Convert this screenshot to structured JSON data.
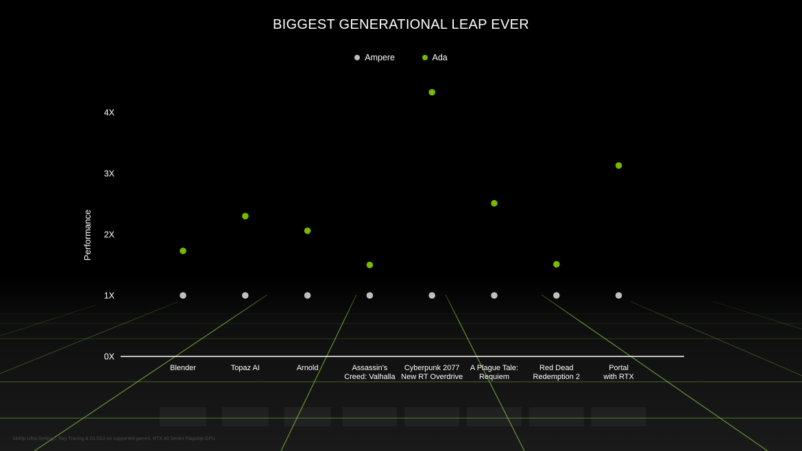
{
  "chart_data": {
    "type": "scatter",
    "title": "BIGGEST GENERATIONAL LEAP EVER",
    "ylabel": "Performance",
    "xlabel": "",
    "ylim": [
      0,
      4.5
    ],
    "y_ticks": [
      {
        "value": 0,
        "label": "0X"
      },
      {
        "value": 1,
        "label": "1X"
      },
      {
        "value": 2,
        "label": "2X"
      },
      {
        "value": 3,
        "label": "3X"
      },
      {
        "value": 4,
        "label": "4X"
      }
    ],
    "categories": [
      [
        "Blender"
      ],
      [
        "Topaz AI"
      ],
      [
        "Arnold"
      ],
      [
        "Assassin's",
        "Creed: Valhalla"
      ],
      [
        "Cyberpunk 2077",
        "New RT Overdrive"
      ],
      [
        "A Plague Tale:",
        "Requiem"
      ],
      [
        "Red Dead",
        "Redemption 2"
      ],
      [
        "Portal",
        "with RTX"
      ]
    ],
    "series": [
      {
        "name": "Ampere",
        "color": "#bfbfbf",
        "values": [
          1,
          1,
          1,
          1,
          1,
          1,
          1,
          1
        ]
      },
      {
        "name": "Ada",
        "color": "#76b900",
        "values": [
          1.73,
          2.3,
          2.06,
          1.5,
          4.33,
          2.51,
          1.51,
          3.13
        ]
      }
    ],
    "legend_position": "top-center",
    "grid": false
  },
  "footnote": "1440p Ultra Settings. Ray Tracing & DLSS3 on supported games. RTX 40 Series Flagship GPU"
}
